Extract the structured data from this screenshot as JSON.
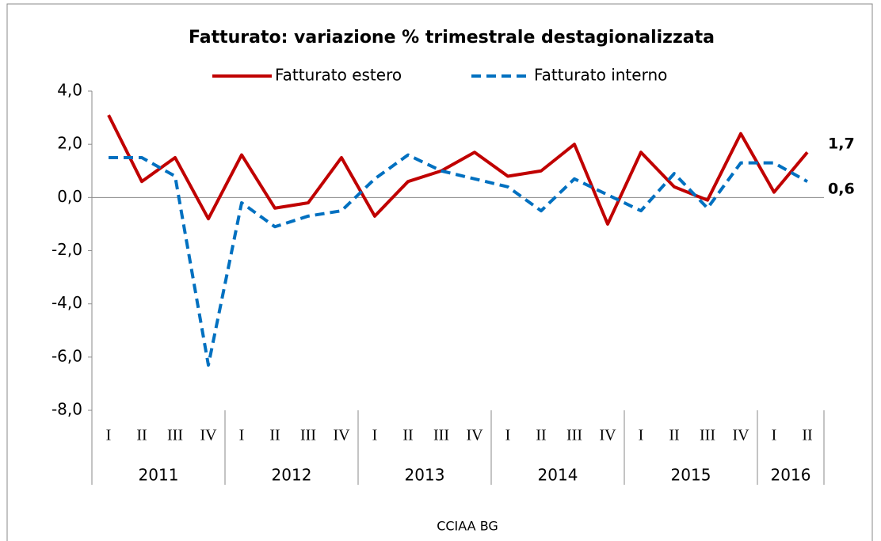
{
  "chart_data": {
    "type": "line",
    "title": "Fatturato: variazione  % trimestrale destagionalizzata",
    "source": "CCIAA BG",
    "categories": [
      "I",
      "II",
      "III",
      "IV",
      "I",
      "II",
      "III",
      "IV",
      "I",
      "II",
      "III",
      "IV",
      "I",
      "II",
      "III",
      "IV",
      "I",
      "II",
      "III",
      "IV",
      "I",
      "II"
    ],
    "x_groups": [
      {
        "label": "2011",
        "count": 4
      },
      {
        "label": "2012",
        "count": 4
      },
      {
        "label": "2013",
        "count": 4
      },
      {
        "label": "2014",
        "count": 4
      },
      {
        "label": "2015",
        "count": 4
      },
      {
        "label": "2016",
        "count": 2
      }
    ],
    "series": [
      {
        "name": "Fatturato estero",
        "color": "#c00000",
        "label_color": "#c00000",
        "dash": false,
        "values": [
          3.1,
          0.6,
          1.5,
          -0.8,
          1.6,
          -0.4,
          -0.2,
          1.5,
          -0.7,
          0.6,
          1.0,
          1.7,
          0.8,
          1.0,
          2.0,
          -1.0,
          1.7,
          0.4,
          -0.1,
          2.4,
          0.2,
          1.7
        ],
        "value_labels": [
          null,
          null,
          null,
          null,
          null,
          null,
          null,
          null,
          null,
          null,
          null,
          null,
          null,
          null,
          null,
          null,
          null,
          null,
          null,
          null,
          null,
          "1,7"
        ]
      },
      {
        "name": "Fatturato interno",
        "color": "#0070c0",
        "label_color": "#1f3864",
        "dash": true,
        "values": [
          1.5,
          1.5,
          0.8,
          -6.3,
          -0.2,
          -1.1,
          -0.7,
          -0.5,
          0.7,
          1.6,
          1.0,
          0.7,
          0.4,
          -0.5,
          0.7,
          0.1,
          -0.5,
          0.9,
          -0.4,
          1.3,
          1.3,
          0.6
        ],
        "value_labels": [
          null,
          null,
          null,
          null,
          null,
          null,
          null,
          null,
          null,
          null,
          null,
          null,
          null,
          null,
          null,
          null,
          null,
          null,
          null,
          null,
          null,
          "0,6"
        ]
      }
    ],
    "ylim": [
      -8,
      4
    ],
    "yticks": [
      {
        "value": -8,
        "label": "-8,0"
      },
      {
        "value": -6,
        "label": "-6,0"
      },
      {
        "value": -4,
        "label": "-4,0"
      },
      {
        "value": -2,
        "label": "-2,0"
      },
      {
        "value": 0,
        "label": "0,0"
      },
      {
        "value": 2,
        "label": "2,0"
      },
      {
        "value": 4,
        "label": "4,0"
      }
    ],
    "legend": "top"
  }
}
